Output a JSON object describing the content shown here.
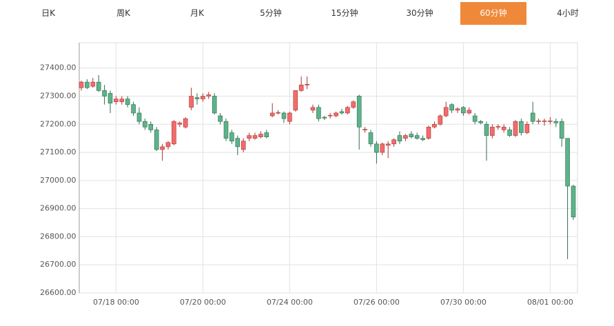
{
  "tabs": {
    "items": [
      "日K",
      "周K",
      "月K",
      "5分钟",
      "15分钟",
      "30分钟",
      "60分钟",
      "4小时"
    ],
    "active": 6
  },
  "chart_data": {
    "type": "candlestick",
    "categories": [
      null,
      null,
      null,
      null,
      null,
      null,
      "07/18 00:00",
      null,
      null,
      null,
      null,
      null,
      null,
      null,
      null,
      null,
      null,
      null,
      null,
      null,
      null,
      "07/20 00:00",
      null,
      null,
      null,
      null,
      null,
      null,
      null,
      null,
      null,
      null,
      null,
      null,
      null,
      null,
      "07/24 00:00",
      null,
      null,
      null,
      null,
      null,
      null,
      null,
      null,
      null,
      null,
      null,
      null,
      null,
      null,
      "07/26 00:00",
      null,
      null,
      null,
      null,
      null,
      null,
      null,
      null,
      null,
      null,
      null,
      null,
      null,
      null,
      "07/30 00:00",
      null,
      null,
      null,
      null,
      null,
      null,
      null,
      null,
      null,
      null,
      null,
      null,
      null,
      null,
      "08/01 00:00",
      null,
      null,
      null,
      null
    ],
    "open": [
      27330,
      27350,
      27335,
      27350,
      27320,
      27310,
      27280,
      27280,
      27290,
      27270,
      27240,
      27210,
      27200,
      27180,
      27110,
      27120,
      27130,
      27200,
      27190,
      27260,
      27295,
      27290,
      27300,
      27300,
      27230,
      27210,
      27170,
      27150,
      27110,
      27150,
      27150,
      27155,
      27170,
      27230,
      27240,
      27240,
      27210,
      27250,
      27320,
      27340,
      27250,
      27260,
      27225,
      27230,
      27230,
      27245,
      27240,
      27260,
      27300,
      27180,
      27170,
      27130,
      27100,
      27125,
      27130,
      27160,
      27150,
      27165,
      27160,
      27150,
      27150,
      27190,
      27200,
      27230,
      27270,
      27250,
      27260,
      27240,
      27230,
      27210,
      27200,
      27160,
      27190,
      27180,
      27180,
      27160,
      27210,
      27170,
      27240,
      27210,
      27210,
      27210,
      27210,
      27210,
      27150,
      26980
    ],
    "high": [
      27355,
      27360,
      27365,
      27375,
      27340,
      27320,
      27300,
      27300,
      27300,
      27280,
      27260,
      27220,
      27210,
      27190,
      27130,
      27140,
      27215,
      27210,
      27225,
      27330,
      27310,
      27310,
      27315,
      27310,
      27240,
      27220,
      27180,
      27160,
      27150,
      27170,
      27170,
      27175,
      27180,
      27275,
      27250,
      27245,
      27245,
      27320,
      27370,
      27370,
      27270,
      27270,
      27230,
      27240,
      27245,
      27255,
      27265,
      27285,
      27305,
      27190,
      27180,
      27140,
      27135,
      27140,
      27150,
      27175,
      27165,
      27175,
      27170,
      27160,
      27195,
      27210,
      27235,
      27280,
      27275,
      27260,
      27265,
      27260,
      27240,
      27215,
      27210,
      27200,
      27200,
      27200,
      27190,
      27215,
      27220,
      27210,
      27280,
      27220,
      27220,
      27225,
      27220,
      27220,
      27150,
      26985
    ],
    "low": [
      27320,
      27325,
      27330,
      27315,
      27270,
      27240,
      27270,
      27270,
      27260,
      27230,
      27200,
      27180,
      27170,
      27105,
      27070,
      27110,
      27125,
      27190,
      27185,
      27250,
      27270,
      27280,
      27290,
      27235,
      27200,
      27140,
      27130,
      27090,
      27100,
      27140,
      27145,
      27150,
      27150,
      27225,
      27235,
      27205,
      27200,
      27245,
      27315,
      27325,
      27240,
      27210,
      27215,
      27220,
      27225,
      27235,
      27235,
      27255,
      27110,
      27170,
      27120,
      27060,
      27090,
      27080,
      27120,
      27130,
      27140,
      27150,
      27145,
      27140,
      27145,
      27185,
      27195,
      27225,
      27240,
      27240,
      27230,
      27235,
      27200,
      27200,
      27070,
      27150,
      27180,
      27170,
      27155,
      27155,
      27160,
      27165,
      27200,
      27200,
      27195,
      27200,
      27190,
      27120,
      26720,
      26860
    ],
    "close": [
      27350,
      27330,
      27350,
      27320,
      27300,
      27275,
      27290,
      27290,
      27270,
      27240,
      27210,
      27190,
      27180,
      27110,
      27120,
      27135,
      27210,
      27205,
      27220,
      27300,
      27290,
      27300,
      27305,
      27240,
      27210,
      27150,
      27140,
      27120,
      27140,
      27160,
      27160,
      27165,
      27155,
      27240,
      27242,
      27220,
      27240,
      27320,
      27340,
      27342,
      27260,
      27220,
      27222,
      27232,
      27240,
      27240,
      27260,
      27280,
      27190,
      27182,
      27130,
      27100,
      27130,
      27130,
      27145,
      27140,
      27160,
      27155,
      27150,
      27145,
      27190,
      27200,
      27230,
      27260,
      27250,
      27255,
      27240,
      27250,
      27210,
      27205,
      27160,
      27190,
      27192,
      27190,
      27160,
      27210,
      27170,
      27200,
      27210,
      27212,
      27212,
      27212,
      27205,
      27150,
      26980,
      26870
    ],
    "up_color": "#f26c6c",
    "down_color": "#5db38b",
    "ylim": [
      26600,
      27490
    ],
    "yticks": [
      {
        "value": 26600,
        "label": "26600.00"
      },
      {
        "value": 26700,
        "label": "26700.00"
      },
      {
        "value": 26800,
        "label": "26800.00"
      },
      {
        "value": 26900,
        "label": "26900.00"
      },
      {
        "value": 27000,
        "label": "27000.00"
      },
      {
        "value": 27100,
        "label": "27100.00"
      },
      {
        "value": 27200,
        "label": "27200.00"
      },
      {
        "value": 27300,
        "label": "27300.00"
      },
      {
        "value": 27400,
        "label": "27400.00"
      }
    ],
    "grid": true
  }
}
